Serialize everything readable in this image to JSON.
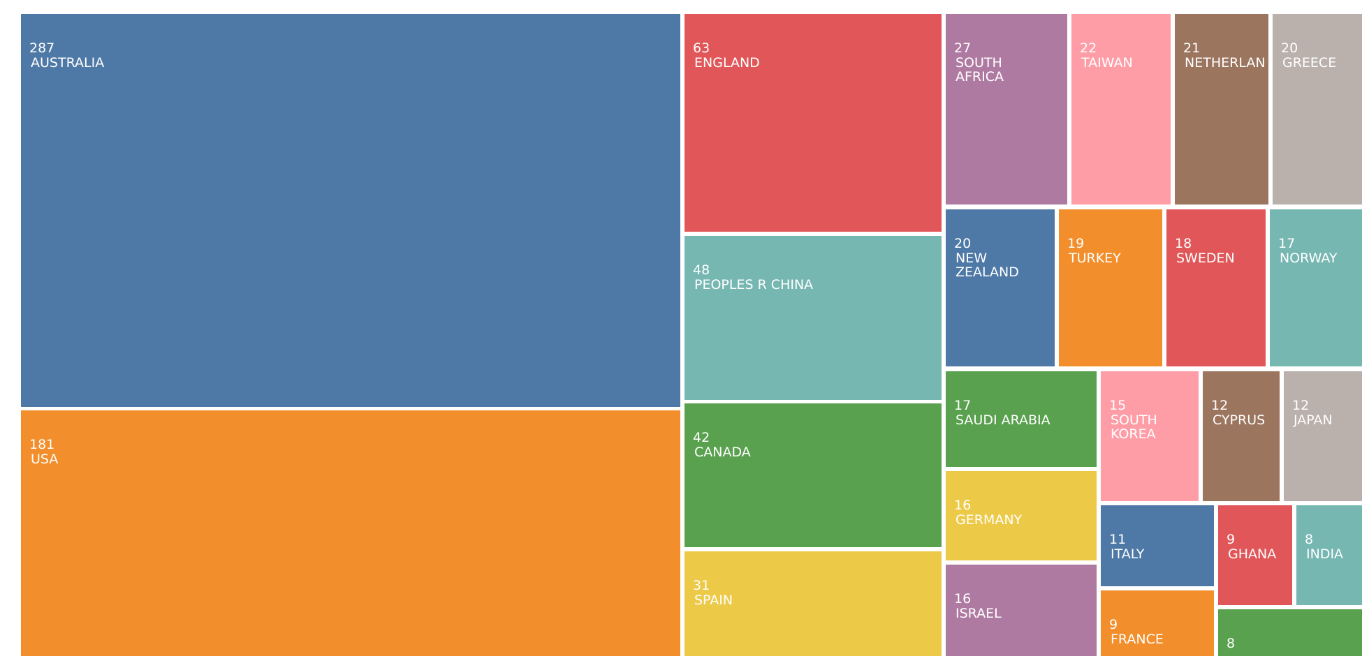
{
  "chart_data": {
    "type": "treemap",
    "colors": {
      "blue": "#4e79a7",
      "orange": "#f28e2b",
      "red": "#e15759",
      "teal": "#76b7b2",
      "green": "#59a14f",
      "yellow": "#edc948",
      "purple": "#af7aa1",
      "pink": "#ff9da7",
      "brown": "#9c755f",
      "gray": "#bab0ac"
    },
    "items": [
      {
        "label": "AUSTRALIA",
        "value": 287,
        "color": "blue"
      },
      {
        "label": "USA",
        "value": 181,
        "color": "orange"
      },
      {
        "label": "ENGLAND",
        "value": 63,
        "color": "red"
      },
      {
        "label": "PEOPLES R CHINA",
        "value": 48,
        "color": "teal"
      },
      {
        "label": "CANADA",
        "value": 42,
        "color": "green"
      },
      {
        "label": "SPAIN",
        "value": 31,
        "color": "yellow"
      },
      {
        "label": "SOUTH AFRICA",
        "display": "SOUTH\nAFRICA",
        "value": 27,
        "color": "purple"
      },
      {
        "label": "TAIWAN",
        "value": 22,
        "color": "pink"
      },
      {
        "label": "NETHERLAN",
        "value": 21,
        "color": "brown"
      },
      {
        "label": "GREECE",
        "value": 20,
        "color": "gray"
      },
      {
        "label": "NEW ZEALAND",
        "display": "NEW\nZEALAND",
        "value": 20,
        "color": "blue"
      },
      {
        "label": "TURKEY",
        "value": 19,
        "color": "orange"
      },
      {
        "label": "SWEDEN",
        "value": 18,
        "color": "red"
      },
      {
        "label": "NORWAY",
        "value": 17,
        "color": "teal"
      },
      {
        "label": "SAUDI ARABIA",
        "value": 17,
        "color": "green"
      },
      {
        "label": "GERMANY",
        "value": 16,
        "color": "yellow"
      },
      {
        "label": "ISRAEL",
        "value": 16,
        "color": "purple"
      },
      {
        "label": "SOUTH KOREA",
        "display": "SOUTH\nKOREA",
        "value": 15,
        "color": "pink"
      },
      {
        "label": "CYPRUS",
        "value": 12,
        "color": "brown"
      },
      {
        "label": "JAPAN",
        "value": 12,
        "color": "gray"
      },
      {
        "label": "ITALY",
        "value": 11,
        "color": "blue"
      },
      {
        "label": "FRANCE",
        "value": 9,
        "color": "orange"
      },
      {
        "label": "GHANA",
        "value": 9,
        "color": "red"
      },
      {
        "label": "INDIA",
        "value": 8,
        "color": "teal"
      },
      {
        "label": "",
        "value": 8,
        "color": "green"
      }
    ]
  }
}
